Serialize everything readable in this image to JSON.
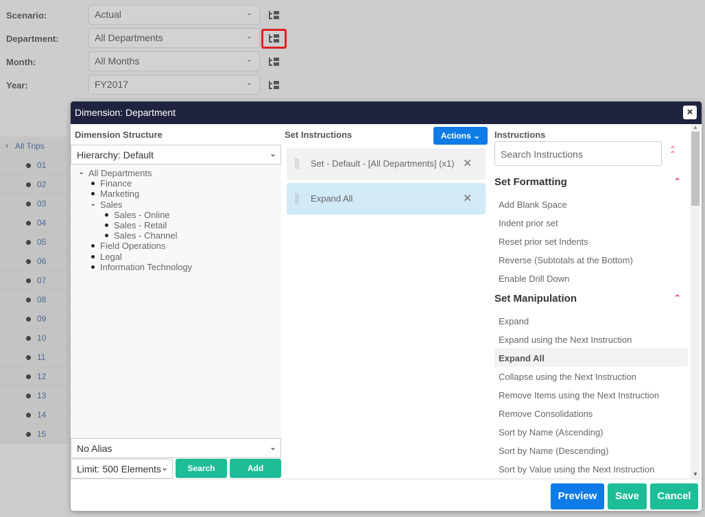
{
  "filters": [
    {
      "label": "Scenario:",
      "value": "Actual"
    },
    {
      "label": "Department:",
      "value": "All Departments"
    },
    {
      "label": "Month:",
      "value": "All Months"
    },
    {
      "label": "Year:",
      "value": "FY2017"
    }
  ],
  "grid": {
    "root": "All Trips",
    "rows": [
      "01",
      "02",
      "03",
      "04",
      "05",
      "06",
      "07",
      "08",
      "09",
      "10",
      "11",
      "12",
      "13",
      "14",
      "15"
    ]
  },
  "modal": {
    "title": "Dimension: Department",
    "close": "×",
    "structure": {
      "heading": "Dimension Structure",
      "hierarchy": "Hierarchy: Default",
      "tree": [
        "All Departments",
        "Finance",
        "Marketing",
        "Sales",
        "Sales - Online",
        "Sales - Retail",
        "Sales - Channel",
        "Field Operations",
        "Legal",
        "Information Technology"
      ],
      "alias": "No Alias",
      "limit": "Limit: 500 Elements",
      "search": "Search",
      "add": "Add"
    },
    "set": {
      "heading": "Set Instructions",
      "actions": "Actions",
      "items": [
        "Set - Default - [All Departments] (x1)",
        "Expand All"
      ]
    },
    "instructions": {
      "heading": "Instructions",
      "search_placeholder": "Search Instructions",
      "sections": [
        {
          "title": "Set Formatting",
          "items": [
            "Add Blank Space",
            "Indent prior set",
            "Reset prior set Indents",
            "Reverse (Subtotals at the Bottom)",
            "Enable Drill Down"
          ]
        },
        {
          "title": "Set Manipulation",
          "items": [
            "Expand",
            "Expand using the Next Instruction",
            "Expand All",
            "Collapse using the Next Instruction",
            "Remove Items using the Next Instruction",
            "Remove Consolidations",
            "Sort by Name (Ascending)",
            "Sort by Name (Descending)",
            "Sort by Value using the Next Instruction"
          ]
        }
      ],
      "active_item": "Expand All"
    },
    "footer": {
      "preview": "Preview",
      "save": "Save",
      "cancel": "Cancel"
    }
  },
  "colors": {
    "header": "#20233f",
    "primary": "#0f7be6",
    "success": "#1dbd98",
    "highlight": "#e02020",
    "selected": "#d1eaf6"
  }
}
